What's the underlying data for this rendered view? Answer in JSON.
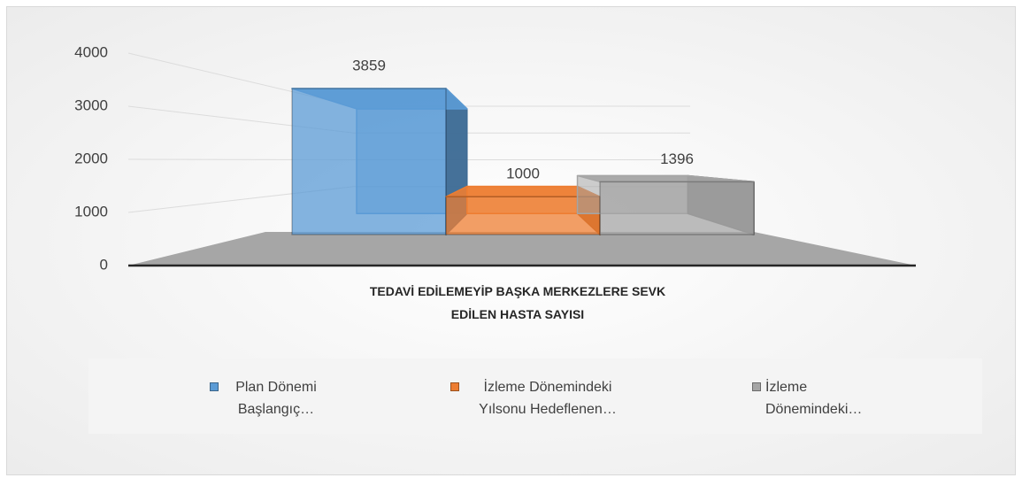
{
  "chart_data": {
    "type": "bar3d",
    "categories": [
      "TEDAVİ EDİLEMEYİP BAŞKA MERKEZLERE SEVK EDİLEN HASTA SAYISI"
    ],
    "series": [
      {
        "name": "Plan Dönemi Başlangıç…",
        "color": "#5b9bd5",
        "values": [
          3859
        ]
      },
      {
        "name": "İzleme Dönemindeki Yılsonu Hedeflenen…",
        "color": "#ed7d31",
        "values": [
          1000
        ]
      },
      {
        "name": "İzleme Dönemindeki…",
        "color": "#a5a5a5",
        "values": [
          1396
        ]
      }
    ],
    "ylim": [
      0,
      4000
    ],
    "yticks": [
      0,
      1000,
      2000,
      3000,
      4000
    ],
    "grid": true,
    "legend": "bottom"
  }
}
